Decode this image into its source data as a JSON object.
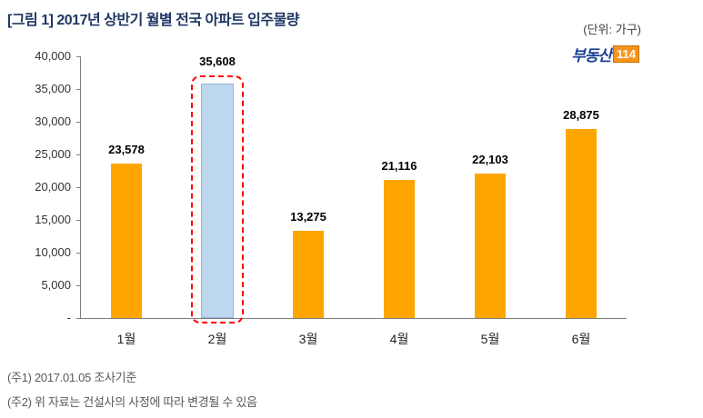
{
  "header": {
    "title": "[그림 1] 2017년 상반기 월별 전국 아파트 입주물량",
    "unit": "(단위: 가구)",
    "logo": {
      "text": "부동산",
      "badge": "114",
      "text_color": "#1B3F93",
      "badge_color": "#F7941E"
    }
  },
  "chart_data": {
    "type": "bar",
    "title": "2017년 상반기 월별 전국 아파트 입주물량",
    "unit": "가구",
    "categories": [
      "1월",
      "2월",
      "3월",
      "4월",
      "5월",
      "6월"
    ],
    "values": [
      23578,
      35608,
      13275,
      21116,
      22103,
      28875
    ],
    "labels": [
      "23,578",
      "35,608",
      "13,275",
      "21,116",
      "22,103",
      "28,875"
    ],
    "highlight_index": 1,
    "ylim": [
      0,
      40000
    ],
    "y_tick_step": 5000,
    "y_ticks": [
      "40,000",
      "35,000",
      "30,000",
      "25,000",
      "20,000",
      "15,000",
      "10,000",
      "5,000",
      "-"
    ],
    "bar_color": "#FFA500",
    "highlight_color": "#BDD7EE",
    "highlight_outline_color": "#FF0000",
    "grid": false,
    "legend": false
  },
  "footnotes": [
    "(주1) 2017.01.05  조사기준",
    "(주2) 위 자료는 건설사의 사정에 따라 변경될 수 있음"
  ]
}
